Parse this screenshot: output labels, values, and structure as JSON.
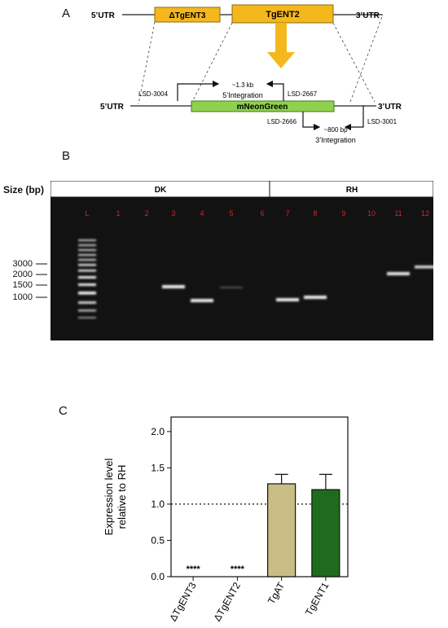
{
  "panel_a": {
    "letter": "A",
    "top_5utr": "5’UTR",
    "top_3utr": "3’UTR",
    "gene1": "ΔTgENT3",
    "gene2": "TgENT2",
    "bottom_5utr": "5’UTR",
    "bottom_3utr": "3’UTR",
    "cassette": "mNeonGreen",
    "primer_lsd3004": "LSD-3004",
    "primer_lsd2667": "LSD-2667",
    "primer_lsd2666": "LSD-2666",
    "primer_lsd3001": "LSD-3001",
    "size_5": "~1.3 kb",
    "label_5int": "5’Integration",
    "size_3": "~800 bp",
    "label_3int": "3’Integration",
    "colors": {
      "gene_box": "#f5b81c",
      "cassette_box": "#8fd14f",
      "arrow": "#f5b81c"
    }
  },
  "panel_b": {
    "letter": "B",
    "size_header": "Size (bp)",
    "group_dk": "DK",
    "group_rh": "RH",
    "lane_labels": [
      "L",
      "1",
      "2",
      "3",
      "4",
      "5",
      "6",
      "7",
      "8",
      "9",
      "10",
      "11",
      "12"
    ],
    "ladder_marks": [
      "3000",
      "2000",
      "1500",
      "1000"
    ],
    "lane_label_color": "#e02020"
  },
  "panel_c": {
    "letter": "C",
    "chart_data": {
      "type": "bar",
      "categories": [
        "ΔTgENT3",
        "ΔTgENT2",
        "TgAT",
        "TgENT1"
      ],
      "values": [
        0.0,
        0.0,
        1.28,
        1.2
      ],
      "errors": [
        0.0,
        0.0,
        0.13,
        0.21
      ],
      "significance": [
        "****",
        "****",
        "",
        ""
      ],
      "bar_colors": [
        "#c8bd85",
        "#c8bd85",
        "#c8bd85",
        "#1e6b1e"
      ],
      "ylabel": "Expression level relative to RH",
      "ylabel_line1": "Expression level",
      "ylabel_line2": "relative to RH",
      "ylim": [
        0,
        2.2
      ],
      "yticks": [
        "0.0",
        "0.5",
        "1.0",
        "1.5",
        "2.0"
      ],
      "reference_line": 1.0
    }
  }
}
